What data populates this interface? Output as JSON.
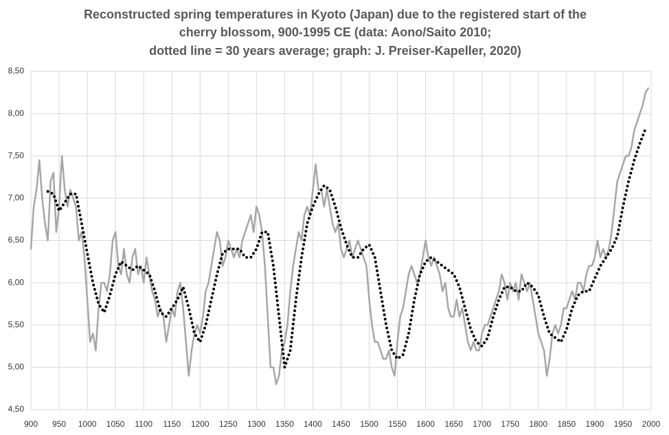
{
  "chart_data": {
    "type": "line",
    "title": [
      "Reconstructed spring temperatures in Kyoto (Japan) due to the registered start of the",
      "cherry blossom,  900-1995 CE (data: Aono/Saito  2010;",
      "dotted line = 30 years average; graph: J. Preiser-Kapeller,  2020)"
    ],
    "series": [
      {
        "color": "#a6a6a6",
        "style": "solid",
        "x": [
          900,
          905,
          910,
          915,
          920,
          925,
          930,
          935,
          940,
          945,
          950,
          955,
          960,
          965,
          970,
          975,
          980,
          985,
          990,
          995,
          1000,
          1005,
          1010,
          1015,
          1020,
          1025,
          1030,
          1035,
          1040,
          1045,
          1050,
          1055,
          1060,
          1065,
          1070,
          1075,
          1080,
          1085,
          1090,
          1095,
          1100,
          1105,
          1110,
          1115,
          1120,
          1125,
          1130,
          1135,
          1140,
          1145,
          1150,
          1155,
          1160,
          1165,
          1170,
          1175,
          1180,
          1185,
          1190,
          1195,
          1200,
          1205,
          1210,
          1215,
          1220,
          1225,
          1230,
          1235,
          1240,
          1245,
          1250,
          1255,
          1260,
          1265,
          1270,
          1275,
          1280,
          1285,
          1290,
          1295,
          1300,
          1305,
          1310,
          1315,
          1320,
          1325,
          1330,
          1335,
          1340,
          1345,
          1350,
          1355,
          1360,
          1365,
          1370,
          1375,
          1380,
          1385,
          1390,
          1395,
          1400,
          1405,
          1410,
          1415,
          1420,
          1425,
          1430,
          1435,
          1440,
          1445,
          1450,
          1455,
          1460,
          1465,
          1470,
          1475,
          1480,
          1485,
          1490,
          1495,
          1500,
          1505,
          1510,
          1515,
          1520,
          1525,
          1530,
          1535,
          1540,
          1545,
          1550,
          1555,
          1560,
          1565,
          1570,
          1575,
          1580,
          1585,
          1590,
          1595,
          1600,
          1605,
          1610,
          1615,
          1620,
          1625,
          1630,
          1635,
          1640,
          1645,
          1650,
          1655,
          1660,
          1665,
          1670,
          1675,
          1680,
          1685,
          1690,
          1695,
          1700,
          1705,
          1710,
          1715,
          1720,
          1725,
          1730,
          1735,
          1740,
          1745,
          1750,
          1755,
          1760,
          1765,
          1770,
          1775,
          1780,
          1785,
          1790,
          1795,
          1800,
          1805,
          1810,
          1815,
          1820,
          1825,
          1830,
          1835,
          1840,
          1845,
          1850,
          1855,
          1860,
          1865,
          1870,
          1875,
          1880,
          1885,
          1890,
          1895,
          1900,
          1905,
          1910,
          1915,
          1920,
          1925,
          1930,
          1935,
          1940,
          1945,
          1950,
          1955,
          1960,
          1965,
          1970,
          1975,
          1980,
          1985,
          1990,
          1995
        ],
        "values": [
          6.4,
          6.9,
          7.1,
          7.45,
          7.0,
          6.7,
          6.5,
          7.2,
          7.3,
          6.6,
          6.9,
          7.5,
          7.1,
          6.9,
          7.1,
          7.0,
          6.9,
          6.5,
          6.6,
          6.3,
          5.8,
          5.3,
          5.4,
          5.2,
          5.7,
          6.0,
          6.0,
          5.9,
          6.1,
          6.5,
          6.6,
          6.2,
          6.1,
          6.4,
          6.1,
          6.0,
          6.3,
          6.4,
          6.1,
          6.2,
          6.0,
          6.3,
          6.1,
          5.9,
          5.8,
          5.6,
          5.7,
          5.6,
          5.3,
          5.5,
          5.7,
          5.6,
          5.9,
          6.0,
          5.7,
          5.3,
          4.9,
          5.2,
          5.4,
          5.5,
          5.4,
          5.6,
          5.9,
          6.0,
          6.2,
          6.4,
          6.6,
          6.5,
          6.2,
          6.3,
          6.5,
          6.4,
          6.3,
          6.4,
          6.3,
          6.5,
          6.6,
          6.7,
          6.8,
          6.6,
          6.9,
          6.8,
          6.6,
          6.2,
          5.6,
          5.0,
          5.0,
          4.8,
          4.9,
          5.2,
          5.3,
          5.5,
          5.9,
          6.2,
          6.4,
          6.6,
          6.5,
          6.8,
          6.9,
          6.8,
          7.1,
          7.4,
          7.1,
          7.1,
          6.9,
          7.1,
          6.9,
          6.7,
          6.6,
          6.7,
          6.4,
          6.3,
          6.4,
          6.5,
          6.3,
          6.4,
          6.5,
          6.4,
          6.3,
          6.2,
          5.8,
          5.5,
          5.3,
          5.3,
          5.2,
          5.1,
          5.1,
          5.2,
          5.0,
          4.9,
          5.3,
          5.6,
          5.7,
          5.9,
          6.1,
          6.2,
          6.1,
          6.0,
          6.1,
          6.3,
          6.5,
          6.3,
          6.2,
          6.3,
          6.2,
          6.1,
          5.9,
          6.0,
          5.7,
          5.6,
          5.6,
          5.8,
          5.6,
          5.7,
          5.5,
          5.3,
          5.2,
          5.3,
          5.2,
          5.2,
          5.4,
          5.5,
          5.5,
          5.6,
          5.7,
          5.8,
          5.9,
          6.1,
          6.0,
          5.8,
          6.0,
          5.9,
          6.0,
          5.8,
          6.1,
          6.0,
          5.9,
          6.0,
          5.8,
          5.6,
          5.4,
          5.3,
          5.2,
          4.9,
          5.1,
          5.4,
          5.5,
          5.4,
          5.5,
          5.7,
          5.7,
          5.8,
          5.9,
          5.8,
          6.0,
          6.0,
          5.9,
          6.1,
          6.2,
          6.2,
          6.3,
          6.5,
          6.3,
          6.4,
          6.3,
          6.4,
          6.6,
          6.9,
          7.2,
          7.3,
          7.4,
          7.5,
          7.5,
          7.6,
          7.8,
          7.9,
          8.0,
          8.1,
          8.25,
          8.3
        ]
      },
      {
        "color": "#000000",
        "style": "dotted",
        "x": [
          930,
          940,
          950,
          960,
          970,
          980,
          990,
          1000,
          1010,
          1020,
          1030,
          1040,
          1050,
          1060,
          1070,
          1080,
          1090,
          1100,
          1110,
          1120,
          1130,
          1140,
          1150,
          1160,
          1170,
          1180,
          1190,
          1200,
          1210,
          1220,
          1230,
          1240,
          1250,
          1260,
          1270,
          1280,
          1290,
          1300,
          1310,
          1320,
          1330,
          1340,
          1350,
          1360,
          1370,
          1380,
          1390,
          1400,
          1410,
          1420,
          1430,
          1440,
          1450,
          1460,
          1470,
          1480,
          1490,
          1500,
          1510,
          1520,
          1530,
          1540,
          1550,
          1560,
          1570,
          1580,
          1590,
          1600,
          1610,
          1620,
          1630,
          1640,
          1650,
          1660,
          1670,
          1680,
          1690,
          1700,
          1710,
          1720,
          1730,
          1740,
          1750,
          1760,
          1770,
          1780,
          1790,
          1800,
          1810,
          1820,
          1830,
          1840,
          1850,
          1860,
          1870,
          1880,
          1890,
          1900,
          1910,
          1920,
          1930,
          1940,
          1950,
          1960,
          1970,
          1980,
          1990
        ],
        "values": [
          7.08,
          7.05,
          6.85,
          6.95,
          7.05,
          7.05,
          6.7,
          6.35,
          6.0,
          5.75,
          5.65,
          5.85,
          6.1,
          6.25,
          6.2,
          6.15,
          6.2,
          6.15,
          6.1,
          5.9,
          5.65,
          5.6,
          5.7,
          5.8,
          5.95,
          5.7,
          5.4,
          5.3,
          5.5,
          5.8,
          6.1,
          6.35,
          6.4,
          6.4,
          6.4,
          6.3,
          6.3,
          6.4,
          6.6,
          6.6,
          6.2,
          5.6,
          5.0,
          5.2,
          5.8,
          6.3,
          6.7,
          6.9,
          7.05,
          7.15,
          7.1,
          6.9,
          6.65,
          6.45,
          6.3,
          6.3,
          6.4,
          6.45,
          6.3,
          5.9,
          5.5,
          5.2,
          5.1,
          5.15,
          5.4,
          5.8,
          6.1,
          6.25,
          6.3,
          6.25,
          6.2,
          6.15,
          6.1,
          5.95,
          5.7,
          5.45,
          5.3,
          5.25,
          5.35,
          5.6,
          5.8,
          5.95,
          5.95,
          5.9,
          5.9,
          6.0,
          5.95,
          5.85,
          5.6,
          5.4,
          5.35,
          5.3,
          5.45,
          5.7,
          5.85,
          5.9,
          5.9,
          6.05,
          6.2,
          6.3,
          6.4,
          6.55,
          6.9,
          7.2,
          7.45,
          7.65,
          7.82
        ]
      }
    ],
    "xlim": [
      900,
      2000
    ],
    "xticks": [
      900,
      950,
      1000,
      1050,
      1100,
      1150,
      1200,
      1250,
      1300,
      1350,
      1400,
      1450,
      1500,
      1550,
      1600,
      1650,
      1700,
      1750,
      1800,
      1850,
      1900,
      1950,
      2000
    ],
    "ylim": [
      4.5,
      8.5
    ],
    "yticks": [
      {
        "value": 4.5,
        "label": "4,50"
      },
      {
        "value": 5,
        "label": "5,00"
      },
      {
        "value": 5.5,
        "label": "5,50"
      },
      {
        "value": 6,
        "label": "6,00"
      },
      {
        "value": 6.5,
        "label": "6,50"
      },
      {
        "value": 7,
        "label": "7,00"
      },
      {
        "value": 7.5,
        "label": "7,50"
      },
      {
        "value": 8,
        "label": "8,00"
      },
      {
        "value": 8.5,
        "label": "8,50"
      }
    ],
    "grid": true
  }
}
